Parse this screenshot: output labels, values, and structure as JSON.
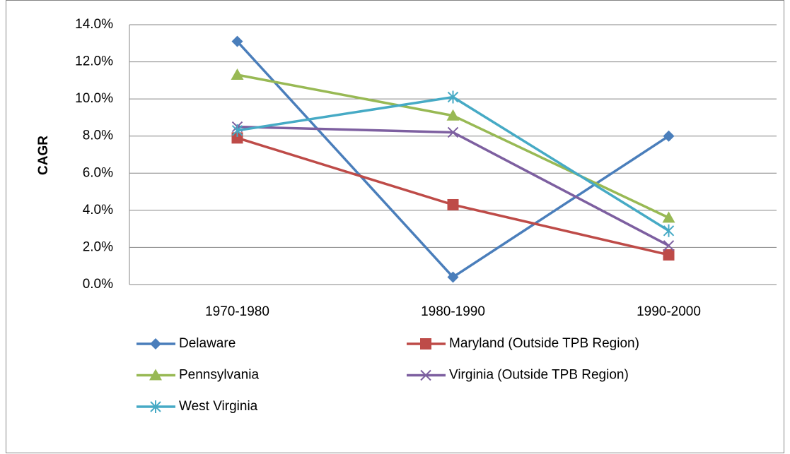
{
  "chart_data": {
    "type": "line",
    "y_label": "CAGR",
    "categories": [
      "1970-1980",
      "1980-1990",
      "1990-2000"
    ],
    "series": [
      {
        "name": "Delaware",
        "color": "#4a7ebb",
        "marker": "diamond",
        "values": [
          13.1,
          0.4,
          8.0
        ]
      },
      {
        "name": "Maryland (Outside TPB Region)",
        "color": "#be4b48",
        "marker": "square",
        "values": [
          7.9,
          4.3,
          1.6
        ]
      },
      {
        "name": "Pennsylvania",
        "color": "#98b954",
        "marker": "triangle",
        "values": [
          11.3,
          9.1,
          3.6
        ]
      },
      {
        "name": "Virginia (Outside TPB Region)",
        "color": "#7d5fa0",
        "marker": "x",
        "values": [
          8.5,
          8.2,
          2.1
        ]
      },
      {
        "name": "West Virginia",
        "color": "#46aac5",
        "marker": "star",
        "values": [
          8.3,
          10.1,
          2.9
        ]
      }
    ],
    "ylim": [
      0,
      14
    ],
    "yticks": [
      {
        "value": 0,
        "label": "0.0%"
      },
      {
        "value": 2,
        "label": "2.0%"
      },
      {
        "value": 4,
        "label": "4.0%"
      },
      {
        "value": 6,
        "label": "6.0%"
      },
      {
        "value": 8,
        "label": "8.0%"
      },
      {
        "value": 10,
        "label": "10.0%"
      },
      {
        "value": 12,
        "label": "12.0%"
      },
      {
        "value": 14,
        "label": "14.0%"
      }
    ],
    "grid": true,
    "legend": "bottom"
  }
}
